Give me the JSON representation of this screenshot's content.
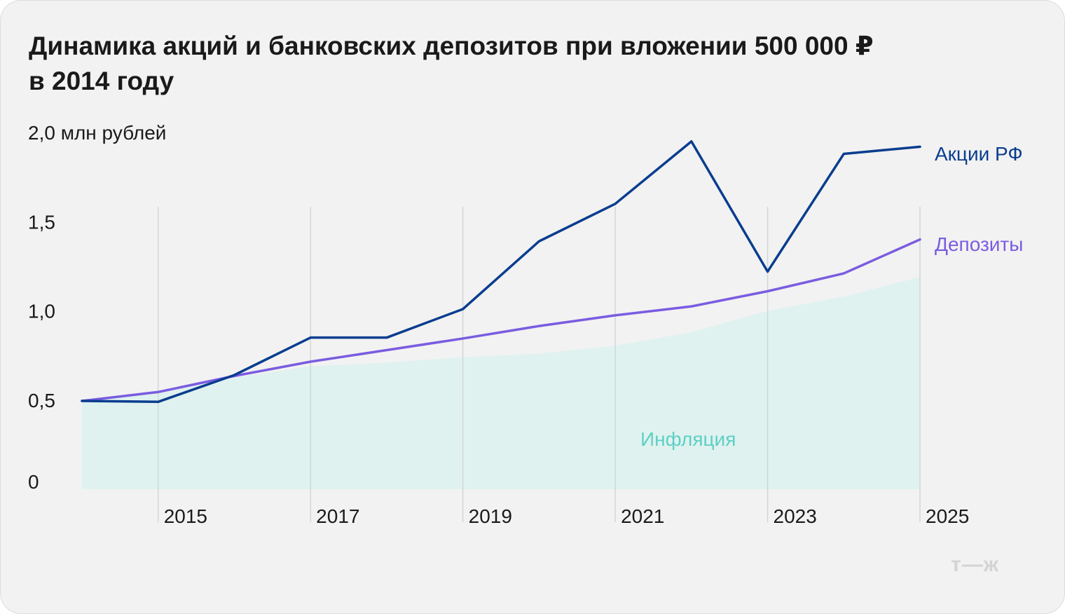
{
  "title_line1": "Динамика акций и банковских депозитов при вложении 500 000 ₽",
  "title_line2": "в 2014 году",
  "logo_text": "т—ж",
  "colors": {
    "stocks": "#0a3d8f",
    "deposits": "#7a5ce0",
    "inflation_fill": "#dff2ef",
    "inflation_label": "#5ed0c6",
    "grid": "#cfd8d6"
  },
  "chart_data": {
    "type": "line",
    "ylabel": "2,0 млн рублей",
    "ylim": [
      0,
      2.0
    ],
    "xlim": [
      2014,
      2025
    ],
    "y_ticks": [
      {
        "value": 0,
        "label": "0"
      },
      {
        "value": 0.5,
        "label": "0,5"
      },
      {
        "value": 1.0,
        "label": "1,0"
      },
      {
        "value": 1.5,
        "label": "1,5"
      },
      {
        "value": 2.0,
        "label": "2,0 млн рублей"
      }
    ],
    "x_ticks": [
      2015,
      2017,
      2019,
      2021,
      2023,
      2025
    ],
    "x_tick_labels": [
      "2015",
      "2017",
      "2019",
      "2021",
      "2023",
      "2025"
    ],
    "x": [
      2014,
      2015,
      2016,
      2017,
      2018,
      2019,
      2020,
      2021,
      2022,
      2023,
      2024,
      2025
    ],
    "series": [
      {
        "key": "stocks",
        "name": "Акции РФ",
        "kind": "line",
        "values": [
          0.495,
          0.49,
          0.64,
          0.85,
          0.85,
          1.01,
          1.39,
          1.6,
          1.95,
          1.22,
          1.88,
          1.92
        ]
      },
      {
        "key": "deposits",
        "name": "Депозиты",
        "kind": "line",
        "values": [
          0.495,
          0.545,
          0.635,
          0.715,
          0.78,
          0.845,
          0.915,
          0.975,
          1.025,
          1.11,
          1.21,
          1.4
        ]
      },
      {
        "key": "inflation",
        "name": "Инфляция",
        "kind": "area",
        "values": [
          0.495,
          0.54,
          0.625,
          0.69,
          0.71,
          0.74,
          0.76,
          0.805,
          0.88,
          1.0,
          1.08,
          1.19
        ]
      }
    ]
  }
}
